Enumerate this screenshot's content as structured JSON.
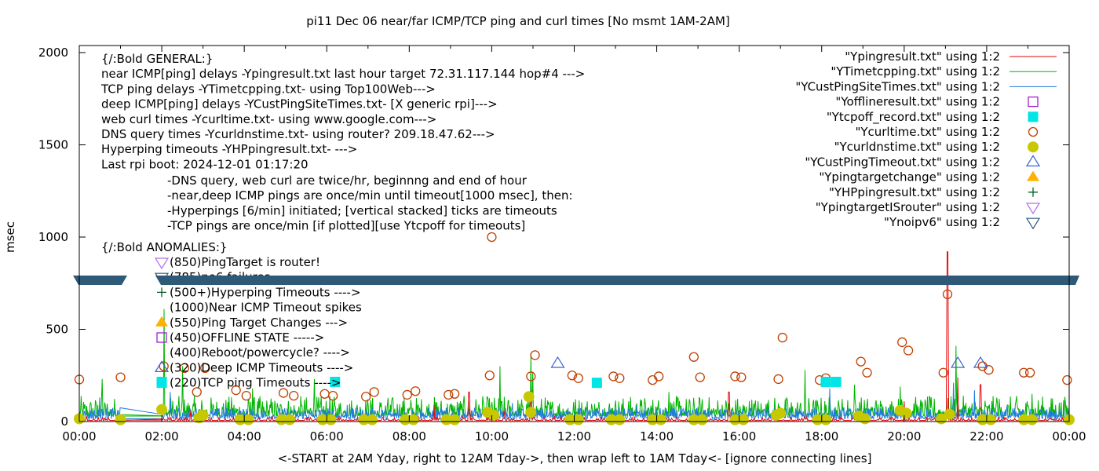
{
  "chart_data": {
    "type": "line",
    "title": "pi11 Dec 06  near/far ICMP/TCP ping and curl times [No msmt 1AM-2AM]",
    "xlabel": "<-START at 2AM Yday, right to 12AM Tday->, then wrap left to 1AM Tday<- [ignore connecting lines]",
    "ylabel": "msec",
    "xlim": [
      0,
      24
    ],
    "ylim": [
      0,
      2000
    ],
    "x_ticks": [
      "00:00",
      "02:00",
      "04:00",
      "06:00",
      "08:00",
      "10:00",
      "12:00",
      "14:00",
      "16:00",
      "18:00",
      "20:00",
      "22:00",
      "00:00"
    ],
    "y_ticks": [
      0,
      500,
      1000,
      1500,
      2000
    ],
    "grid": false,
    "legend_position": "top-right",
    "legend": [
      {
        "label": "\"Ypingresult.txt\" using 1:2",
        "style": "line",
        "color": "#e8060a"
      },
      {
        "label": "\"YTimetcpping.txt\" using 1:2",
        "style": "line",
        "color": "#00b400"
      },
      {
        "label": "\"YCustPingSiteTimes.txt\" using 1:2",
        "style": "line",
        "color": "#1f7be0"
      },
      {
        "label": "\"Yofflineresult.txt\" using 1:2",
        "style": "open-square",
        "color": "#a020d0"
      },
      {
        "label": "\"Ytcpoff_record.txt\" using 1:2",
        "style": "filled-square",
        "color": "#00e5e5"
      },
      {
        "label": "\"Ycurltime.txt\" using 1:2",
        "style": "open-circle",
        "color": "#c04000"
      },
      {
        "label": "\"Ycurldnstime.txt\" using 1:2",
        "style": "filled-circle",
        "color": "#c8c800"
      },
      {
        "label": "\"YCustPingTimeout.txt\" using 1:2",
        "style": "open-triangle-up",
        "color": "#3a60d0"
      },
      {
        "label": "\"Ypingtargetchange\" using 1:2",
        "style": "filled-triangle-up",
        "color": "#ffb000"
      },
      {
        "label": "\"YHPpingresult.txt\" using 1:2",
        "style": "plus",
        "color": "#006020"
      },
      {
        "label": "\"YpingtargetISrouter\" using 1:2",
        "style": "open-triangle-down",
        "color": "#b070f0"
      },
      {
        "label": "\"Ynoipv6\" using 1:2",
        "style": "open-triangle-down",
        "color": "#2e5a78"
      }
    ],
    "annotations": {
      "general": [
        "{/:Bold GENERAL:}",
        "near ICMP[ping] delays -Ypingresult.txt last hour target 72.31.117.144 hop#4 --->",
        "TCP ping delays -YTimetcpping.txt- using Top100Web--->",
        "deep ICMP[ping] delays -YCustPingSiteTimes.txt- [X generic rpi]--->",
        "web curl times -Ycurltime.txt- using www.google.com--->",
        "DNS query times -Ycurldnstime.txt- using router? 209.18.47.62--->",
        "Hyperping timeouts -YHPpingresult.txt- --->",
        "Last rpi boot: 2024-12-01 01:17:20"
      ],
      "notes": [
        "-DNS query, web curl are twice/hr, beginnng and end of hour",
        "-near,deep ICMP pings are once/min until timeout[1000 msec], then:",
        " -Hyperpings [6/min] initiated; [vertical stacked] ticks are timeouts",
        "-TCP pings are once/min [if plotted][use Ytcpoff for timeouts]"
      ],
      "anomalies_title": "{/:Bold ANOMALIES:}",
      "anomalies": [
        {
          "marker": "open-triangle-down-violet",
          "label": "(850)PingTarget is router!"
        },
        {
          "marker": "open-triangle-down-navy",
          "label": "(785)no6 failures"
        },
        {
          "marker": "plus",
          "label": "(500+)Hyperping Timeouts ---->"
        },
        {
          "marker": "none",
          "label": "(1000)Near ICMP Timeout spikes"
        },
        {
          "marker": "filled-triangle-up",
          "label": "(550)Ping Target Changes --->"
        },
        {
          "marker": "open-square",
          "label": "(450)OFFLINE STATE ----->"
        },
        {
          "marker": "none",
          "label": "(400)Reboot/powercycle? ---->"
        },
        {
          "marker": "open-triangle-up",
          "label": "(320)Deep ICMP Timeouts ---->"
        },
        {
          "marker": "filled-square",
          "label": "(220)TCP ping Timeouts ---->"
        }
      ]
    },
    "series": [
      {
        "name": "Ycurltime.txt",
        "type": "scatter",
        "points": [
          [
            0.0,
            228
          ],
          [
            1.0,
            240
          ],
          [
            2.05,
            300
          ],
          [
            2.55,
            290
          ],
          [
            2.85,
            160
          ],
          [
            3.05,
            290
          ],
          [
            3.8,
            170
          ],
          [
            4.05,
            140
          ],
          [
            4.95,
            155
          ],
          [
            5.2,
            140
          ],
          [
            5.95,
            150
          ],
          [
            6.15,
            140
          ],
          [
            6.95,
            135
          ],
          [
            7.15,
            160
          ],
          [
            7.95,
            145
          ],
          [
            8.15,
            165
          ],
          [
            8.95,
            145
          ],
          [
            9.1,
            150
          ],
          [
            9.95,
            250
          ],
          [
            10.0,
            1000
          ],
          [
            10.95,
            245
          ],
          [
            11.05,
            360
          ],
          [
            11.95,
            250
          ],
          [
            12.1,
            235
          ],
          [
            12.95,
            245
          ],
          [
            13.1,
            235
          ],
          [
            13.9,
            225
          ],
          [
            14.05,
            245
          ],
          [
            14.9,
            350
          ],
          [
            15.05,
            240
          ],
          [
            15.9,
            245
          ],
          [
            16.05,
            240
          ],
          [
            16.95,
            230
          ],
          [
            17.05,
            455
          ],
          [
            17.95,
            225
          ],
          [
            18.1,
            235
          ],
          [
            18.95,
            325
          ],
          [
            19.1,
            265
          ],
          [
            19.95,
            430
          ],
          [
            20.1,
            385
          ],
          [
            20.95,
            265
          ],
          [
            21.05,
            690
          ],
          [
            21.9,
            300
          ],
          [
            22.05,
            280
          ],
          [
            22.9,
            265
          ],
          [
            23.05,
            265
          ],
          [
            23.95,
            225
          ]
        ]
      },
      {
        "name": "Ycurldnstime.txt",
        "type": "scatter",
        "points": [
          [
            0.0,
            15
          ],
          [
            1.0,
            10
          ],
          [
            2.0,
            65
          ],
          [
            2.9,
            20
          ],
          [
            3.0,
            35
          ],
          [
            3.9,
            10
          ],
          [
            4.1,
            10
          ],
          [
            4.9,
            10
          ],
          [
            5.1,
            10
          ],
          [
            5.9,
            10
          ],
          [
            6.1,
            10
          ],
          [
            6.9,
            10
          ],
          [
            7.1,
            10
          ],
          [
            7.9,
            10
          ],
          [
            8.1,
            10
          ],
          [
            8.9,
            10
          ],
          [
            9.1,
            10
          ],
          [
            9.9,
            50
          ],
          [
            10.05,
            35
          ],
          [
            10.9,
            135
          ],
          [
            10.95,
            50
          ],
          [
            11.9,
            10
          ],
          [
            12.1,
            10
          ],
          [
            12.9,
            10
          ],
          [
            13.1,
            10
          ],
          [
            13.9,
            10
          ],
          [
            14.1,
            10
          ],
          [
            14.9,
            10
          ],
          [
            15.1,
            10
          ],
          [
            15.9,
            10
          ],
          [
            16.1,
            10
          ],
          [
            16.9,
            35
          ],
          [
            17.0,
            45
          ],
          [
            17.9,
            10
          ],
          [
            18.1,
            10
          ],
          [
            18.9,
            30
          ],
          [
            19.05,
            15
          ],
          [
            19.9,
            60
          ],
          [
            20.05,
            45
          ],
          [
            20.9,
            15
          ],
          [
            21.1,
            40
          ],
          [
            21.9,
            10
          ],
          [
            22.1,
            10
          ],
          [
            22.9,
            10
          ],
          [
            23.1,
            10
          ],
          [
            24.0,
            10
          ]
        ]
      },
      {
        "name": "Ytcpoff_record.txt",
        "type": "scatter",
        "points": [
          [
            2.0,
            215
          ],
          [
            6.2,
            215
          ],
          [
            12.55,
            210
          ],
          [
            18.1,
            215
          ],
          [
            18.35,
            215
          ]
        ]
      },
      {
        "name": "YCustPingTimeout.txt",
        "type": "scatter",
        "points": [
          [
            11.6,
            315
          ],
          [
            21.3,
            315
          ],
          [
            21.85,
            315
          ]
        ]
      },
      {
        "name": "Ynoipv6",
        "type": "scatter",
        "note": "dense band of markers spanning nearly the full day",
        "points": [
          [
            0.0,
            770
          ],
          [
            1.1,
            770
          ],
          [
            2.0,
            770
          ],
          [
            24.0,
            770
          ]
        ]
      },
      {
        "name": "Ypingresult.txt",
        "type": "line",
        "baseline_msec": 8,
        "spikes": [
          [
            2.7,
            60
          ],
          [
            8.6,
            90
          ],
          [
            9.45,
            160
          ],
          [
            10.3,
            60
          ],
          [
            10.95,
            165
          ],
          [
            15.75,
            160
          ],
          [
            20.0,
            110
          ],
          [
            21.05,
            920
          ],
          [
            21.3,
            240
          ],
          [
            21.85,
            200
          ]
        ]
      },
      {
        "name": "YTimetcpping.txt",
        "type": "line",
        "baseline_msec": 30,
        "spikes": [
          [
            0.55,
            230
          ],
          [
            2.05,
            610
          ],
          [
            2.5,
            300
          ],
          [
            4.2,
            180
          ],
          [
            5.7,
            230
          ],
          [
            10.2,
            300
          ],
          [
            10.95,
            370
          ],
          [
            11.0,
            270
          ],
          [
            14.3,
            160
          ],
          [
            17.6,
            280
          ],
          [
            18.8,
            200
          ],
          [
            19.9,
            190
          ],
          [
            21.25,
            410
          ],
          [
            22.25,
            130
          ],
          [
            23.1,
            150
          ]
        ]
      },
      {
        "name": "YCustPingSiteTimes.txt",
        "type": "line",
        "baseline_msec": 15,
        "spikes": [
          [
            0.5,
            130
          ],
          [
            2.2,
            160
          ],
          [
            3.5,
            100
          ],
          [
            6.5,
            90
          ],
          [
            10.5,
            100
          ],
          [
            13.5,
            90
          ],
          [
            18.2,
            180
          ],
          [
            21.2,
            210
          ],
          [
            21.7,
            170
          ],
          [
            22.5,
            90
          ]
        ]
      }
    ]
  }
}
